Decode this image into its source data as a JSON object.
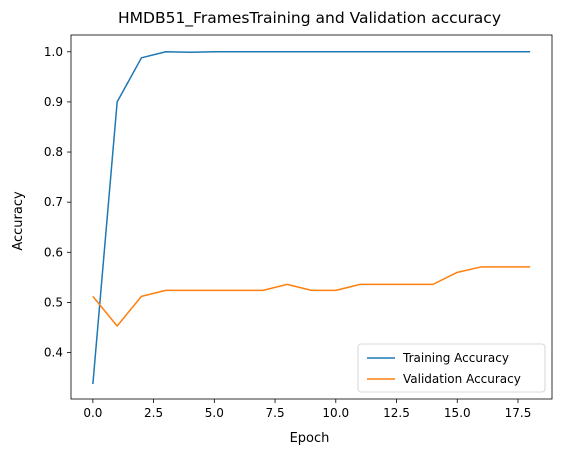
{
  "chart_data": {
    "type": "line",
    "title": "HMDB51_FramesTraining and Validation accuracy",
    "xlabel": "Epoch",
    "ylabel": "Accuracy",
    "x": [
      0,
      1,
      2,
      3,
      4,
      5,
      6,
      7,
      8,
      9,
      10,
      11,
      12,
      13,
      14,
      15,
      16,
      17,
      18
    ],
    "xlim": [
      -0.9,
      18.9
    ],
    "ylim": [
      0.3073,
      1.0335
    ],
    "xticks": [
      0.0,
      2.5,
      5.0,
      7.5,
      10.0,
      12.5,
      15.0,
      17.5
    ],
    "xtick_labels": [
      "0.0",
      "2.5",
      "5.0",
      "7.5",
      "10.0",
      "12.5",
      "15.0",
      "17.5"
    ],
    "yticks": [
      0.4,
      0.5,
      0.6,
      0.7,
      0.8,
      0.9,
      1.0
    ],
    "ytick_labels": [
      "0.4",
      "0.5",
      "0.6",
      "0.7",
      "0.8",
      "0.9",
      "1.0"
    ],
    "grid": false,
    "legend_position": "lower-right",
    "series": [
      {
        "name": "Training Accuracy",
        "color": "#1f77b4",
        "values": [
          0.337,
          0.9,
          0.988,
          1.0,
          0.999,
          1.0,
          1.0,
          1.0,
          1.0,
          1.0,
          1.0,
          1.0,
          1.0,
          1.0,
          1.0,
          1.0,
          1.0,
          1.0,
          1.0
        ]
      },
      {
        "name": "Validation Accuracy",
        "color": "#ff7f0e",
        "values": [
          0.512,
          0.453,
          0.512,
          0.524,
          0.524,
          0.524,
          0.524,
          0.524,
          0.536,
          0.524,
          0.524,
          0.536,
          0.536,
          0.536,
          0.536,
          0.56,
          0.571,
          0.571,
          0.571
        ]
      }
    ]
  }
}
